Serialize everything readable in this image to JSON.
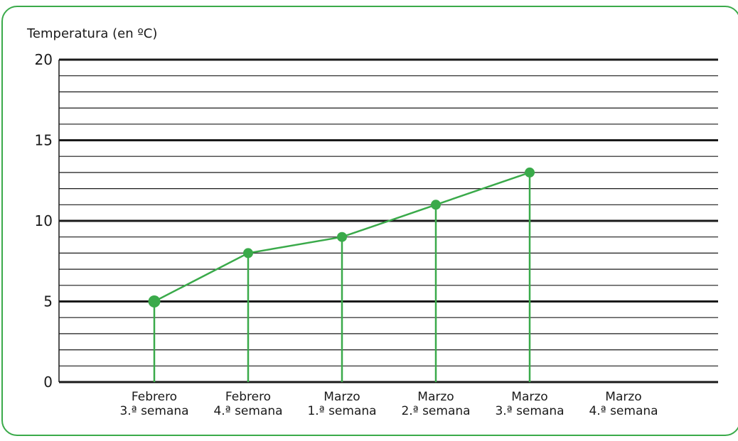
{
  "colors": {
    "frame": "#3aaa4a",
    "series": "#3aaa4a",
    "grid": "#1a1a1a"
  },
  "chart_data": {
    "type": "line",
    "title": "",
    "ylabel": "Temperatura  (en ºC)",
    "xlabel": "",
    "ylim": [
      0,
      20
    ],
    "yticks": [
      0,
      5,
      10,
      15,
      20
    ],
    "minor_grid_step": 1,
    "grid": true,
    "categories": [
      [
        "Febrero",
        "3.ª semana"
      ],
      [
        "Febrero",
        "4.ª semana"
      ],
      [
        "Marzo",
        "1.ª semana"
      ],
      [
        "Marzo",
        "2.ª semana"
      ],
      [
        "Marzo",
        "3.ª semana"
      ],
      [
        "Marzo",
        "4.ª semana"
      ]
    ],
    "series": [
      {
        "values": [
          5,
          8,
          9,
          11,
          13,
          null
        ]
      }
    ],
    "drop_lines": true
  }
}
